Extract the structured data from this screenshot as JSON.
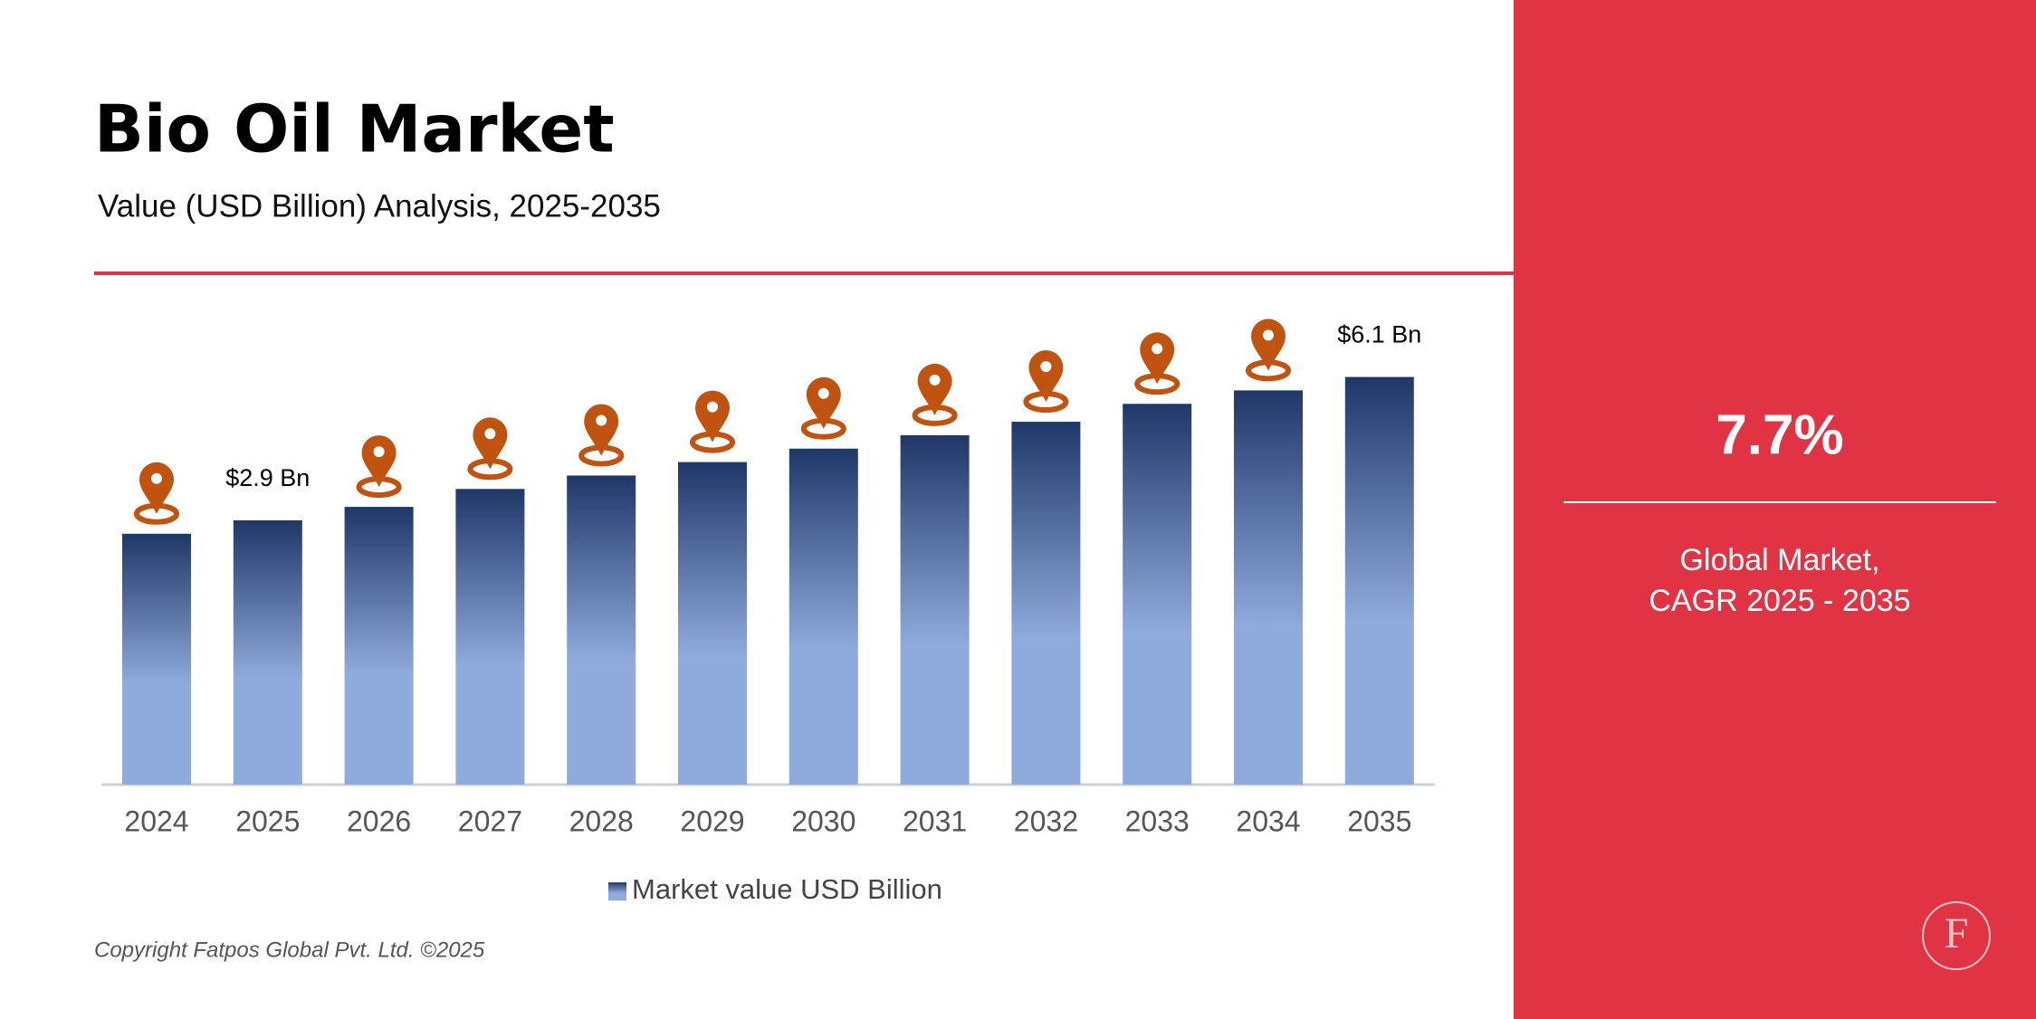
{
  "chart_data": {
    "type": "bar",
    "title": "Bio Oil Market",
    "subtitle": "Value (USD Billion) Analysis, 2025-2035",
    "categories": [
      "2024",
      "2025",
      "2026",
      "2027",
      "2028",
      "2029",
      "2030",
      "2031",
      "2032",
      "2033",
      "2034",
      "2035"
    ],
    "series": [
      {
        "name": "Market value USD Billion",
        "gradient": [
          "#1f3868",
          "#8faadc"
        ],
        "values": [
          2.6,
          2.9,
          3.2,
          3.6,
          3.9,
          4.2,
          4.5,
          4.8,
          5.1,
          5.5,
          5.8,
          6.1
        ],
        "value_labels": [
          null,
          "$2.9 Bn",
          null,
          null,
          null,
          null,
          null,
          null,
          null,
          null,
          null,
          "$6.1 Bn"
        ]
      }
    ],
    "ylim": [
      -3,
      7
    ]
  },
  "panel": {
    "cagr": "7.7%",
    "caption": [
      "Global Market,",
      "CAGR 2025 - 2035"
    ],
    "logo": "F"
  },
  "copyright": "Copyright Fatpos Global Pvt. Ltd. ©2025"
}
